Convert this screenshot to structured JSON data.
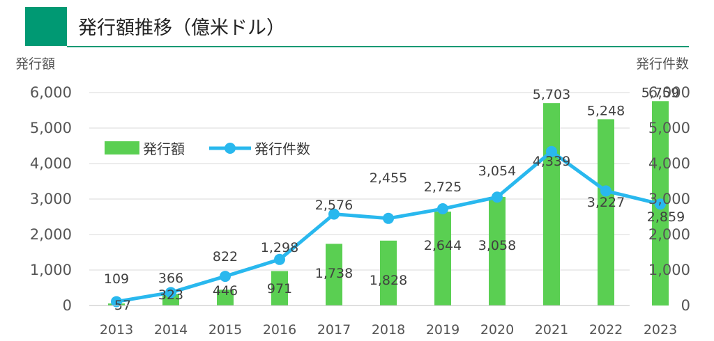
{
  "title": "発行額推移（億米ドル）",
  "colors": {
    "accent": "#009973",
    "bar": "#5ACF52",
    "line": "#29B8EE",
    "grid": "#D9D9D9"
  },
  "chart_data": {
    "type": "bar+line",
    "categories": [
      "2013",
      "2014",
      "2015",
      "2016",
      "2017",
      "2018",
      "2019",
      "2020",
      "2021",
      "2022",
      "2023"
    ],
    "series": [
      {
        "name": "発行額",
        "type": "bar",
        "axis": "left",
        "values": [
          57,
          323,
          446,
          971,
          1738,
          1828,
          2644,
          3058,
          5703,
          5248,
          5759
        ]
      },
      {
        "name": "発行件数",
        "type": "line",
        "axis": "right",
        "values": [
          109,
          366,
          822,
          1298,
          2576,
          2455,
          2725,
          3054,
          4339,
          3227,
          2859
        ]
      }
    ],
    "left_axis": {
      "label": "発行額",
      "ylim": [
        0,
        6000
      ],
      "ticks": [
        "0",
        "1,000",
        "2,000",
        "3,000",
        "4,000",
        "5,000",
        "6,000"
      ]
    },
    "right_axis": {
      "label": "発行件数",
      "ylim": [
        0,
        6000
      ],
      "ticks": [
        "0",
        "1,000",
        "2,000",
        "3,000",
        "4,000",
        "5,000",
        "6,000"
      ]
    },
    "bar_labels": [
      "57",
      "323",
      "446",
      "971",
      "1,738",
      "1,828",
      "2,644",
      "3,058",
      "5,703",
      "5,248",
      "5,759"
    ],
    "line_labels": [
      "109",
      "366",
      "822",
      "1,298",
      "2,576",
      "2,455",
      "2,725",
      "3,054",
      "4,339",
      "3,227",
      "2,859"
    ],
    "legend": [
      "発行額",
      "発行件数"
    ],
    "legend_position": "upper-left",
    "grid": true
  }
}
